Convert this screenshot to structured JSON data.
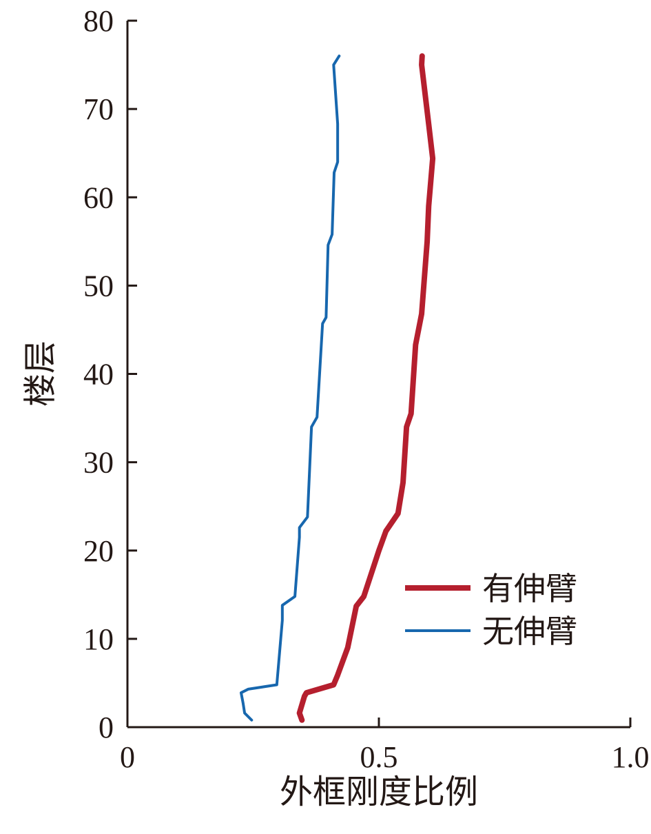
{
  "chart_data": {
    "type": "line",
    "xlabel": "外框刚度比例",
    "ylabel": "楼层",
    "xlim": [
      0,
      1
    ],
    "xticks": [
      0,
      0.5,
      {
        "value": 1,
        "label": "1.0"
      }
    ],
    "ylim": [
      0,
      80
    ],
    "yticks": [
      0,
      10,
      20,
      30,
      40,
      50,
      60,
      70,
      80
    ],
    "legend": "lower right",
    "series": [
      {
        "name": "有伸臂",
        "color": "#b51f2e",
        "width": 8,
        "x": [
          0.347,
          0.342,
          0.352,
          0.356,
          0.41,
          0.418,
          0.438,
          0.455,
          0.47,
          0.5,
          0.514,
          0.538,
          0.548,
          0.555,
          0.564,
          0.573,
          0.585,
          0.596,
          0.599,
          0.607,
          0.599,
          0.585,
          0.586
        ],
        "y": [
          0.8,
          1.6,
          3.5,
          3.9,
          4.8,
          5.9,
          9,
          13.7,
          14.8,
          20,
          22.2,
          24.2,
          27.7,
          34,
          35.5,
          43.3,
          46.8,
          55,
          59,
          64.4,
          68.3,
          75,
          76
        ]
      },
      {
        "name": "无伸臂",
        "color": "#1767ae",
        "width": 4,
        "x": [
          0.247,
          0.233,
          0.23,
          0.226,
          0.24,
          0.297,
          0.308,
          0.308,
          0.333,
          0.342,
          0.342,
          0.358,
          0.366,
          0.377,
          0.388,
          0.395,
          0.399,
          0.407,
          0.411,
          0.418,
          0.418,
          0.41,
          0.421
        ],
        "y": [
          0.8,
          1.6,
          2.7,
          3.9,
          4.3,
          4.8,
          12.1,
          13.8,
          14.8,
          21.5,
          22.6,
          23.8,
          34,
          35.1,
          45.7,
          46.4,
          54.6,
          55.8,
          62.8,
          64,
          68.3,
          75,
          76
        ]
      }
    ]
  }
}
